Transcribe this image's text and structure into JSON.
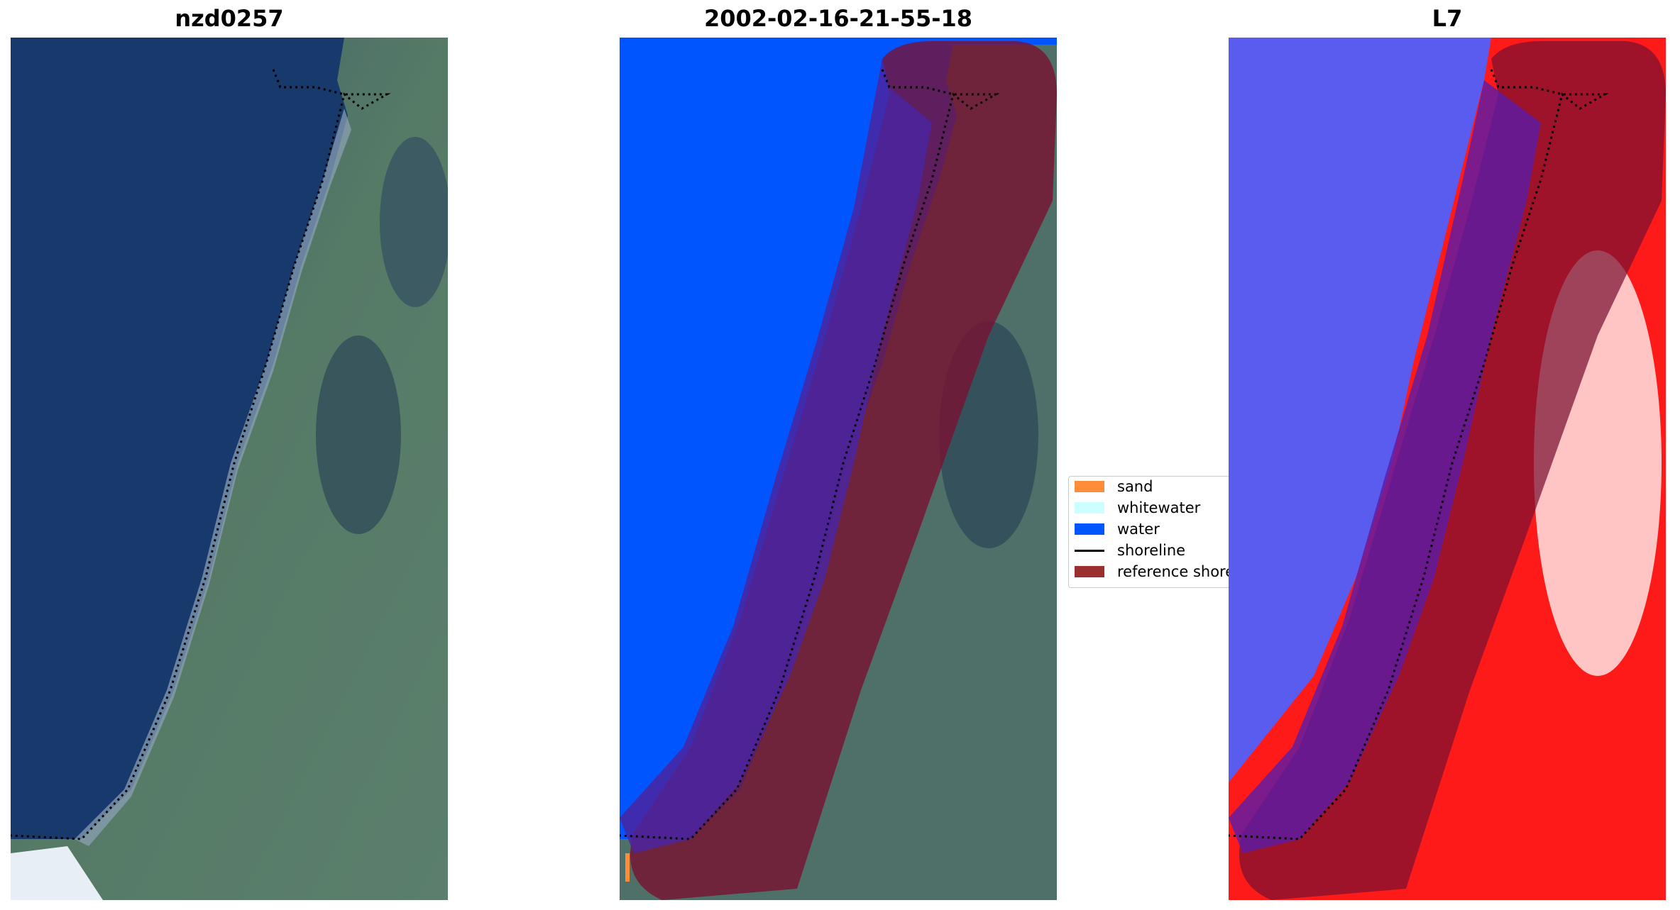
{
  "panels": [
    {
      "title": "nzd0257"
    },
    {
      "title": "2002-02-16-21-55-18"
    },
    {
      "title": "L7"
    }
  ],
  "legend": {
    "items": [
      {
        "label": "sand",
        "color": "#ff8c38",
        "kind": "patch"
      },
      {
        "label": "whitewater",
        "color": "#ccffff",
        "kind": "patch"
      },
      {
        "label": "water",
        "color": "#0055ff",
        "kind": "patch"
      },
      {
        "label": "shoreline",
        "color": "#000000",
        "kind": "line"
      },
      {
        "label": "reference shoreline buffer",
        "color": "#9b2e2e",
        "kind": "patch"
      }
    ]
  },
  "colors": {
    "ocean": "#17396b",
    "land": "#4e7068",
    "classified_water": "#0055ff",
    "buffer": "#7a1030",
    "index_water": "#5a5cf0",
    "index_land": "#ff1a1a"
  }
}
